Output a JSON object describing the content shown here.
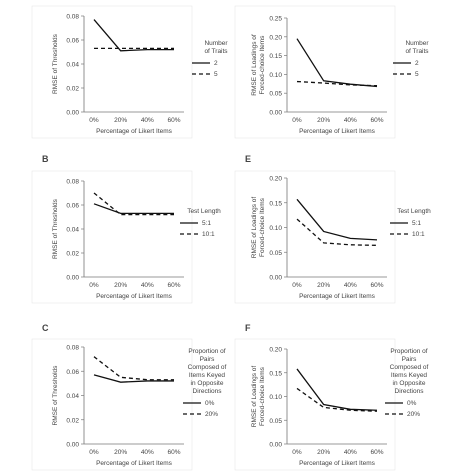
{
  "figure": {
    "xlabel": "Percentage of Likert Items",
    "categories": [
      "0%",
      "20%",
      "40%",
      "60%"
    ]
  },
  "chart_data": [
    {
      "type": "line",
      "panel_letter": "",
      "title": "",
      "xlabel": "Percentage of Likert Items",
      "ylabel": "RMSE of Thresholds",
      "categories": [
        "0%",
        "20%",
        "40%",
        "60%"
      ],
      "ylim": [
        0,
        0.08
      ],
      "yticks": [
        "0.00",
        "0.02",
        "0.04",
        "0.06",
        "0.08"
      ],
      "legend_title": [
        "Number",
        "of Traits"
      ],
      "series": [
        {
          "name": "2",
          "dash": "solid",
          "values": [
            0.077,
            0.051,
            0.052,
            0.052
          ]
        },
        {
          "name": "5",
          "dash": "dashed",
          "values": [
            0.053,
            0.053,
            0.053,
            0.053
          ]
        }
      ]
    },
    {
      "type": "line",
      "panel_letter": "",
      "title": "",
      "xlabel": "Percentage of Likert Items",
      "ylabel": "RMSE of Loadings of Forced-choice Items",
      "categories": [
        "0%",
        "20%",
        "40%",
        "60%"
      ],
      "ylim": [
        0,
        0.25
      ],
      "yticks": [
        "0.00",
        "0.05",
        "0.10",
        "0.15",
        "0.20",
        "0.25"
      ],
      "legend_title": [
        "Number",
        "of Traits"
      ],
      "series": [
        {
          "name": "2",
          "dash": "solid",
          "values": [
            0.195,
            0.083,
            0.074,
            0.068
          ]
        },
        {
          "name": "5",
          "dash": "dashed",
          "values": [
            0.081,
            0.077,
            0.072,
            0.07
          ]
        }
      ]
    },
    {
      "type": "line",
      "panel_letter": "B",
      "title": "",
      "xlabel": "Percentage of Likert Items",
      "ylabel": "RMSE of Thresholds",
      "categories": [
        "0%",
        "20%",
        "40%",
        "60%"
      ],
      "ylim": [
        0,
        0.08
      ],
      "yticks": [
        "0.00",
        "0.02",
        "0.04",
        "0.06",
        "0.08"
      ],
      "legend_title": [
        "Test Length"
      ],
      "series": [
        {
          "name": "5:1",
          "dash": "solid",
          "values": [
            0.061,
            0.053,
            0.053,
            0.053
          ]
        },
        {
          "name": "10:1",
          "dash": "dashed",
          "values": [
            0.07,
            0.052,
            0.052,
            0.052
          ]
        }
      ]
    },
    {
      "type": "line",
      "panel_letter": "E",
      "title": "",
      "xlabel": "Percentage of Likert Items",
      "ylabel": "RMSE of Loadings of Forced-choice Items",
      "categories": [
        "0%",
        "20%",
        "40%",
        "60%"
      ],
      "ylim": [
        0,
        0.2
      ],
      "yticks": [
        "0.00",
        "0.05",
        "0.10",
        "0.15",
        "0.20"
      ],
      "legend_title": [
        "Test Length"
      ],
      "series": [
        {
          "name": "5:1",
          "dash": "solid",
          "values": [
            0.157,
            0.092,
            0.078,
            0.075
          ]
        },
        {
          "name": "10:1",
          "dash": "dashed",
          "values": [
            0.117,
            0.069,
            0.065,
            0.064
          ]
        }
      ]
    },
    {
      "type": "line",
      "panel_letter": "C",
      "title": "",
      "xlabel": "Percentage of Likert Items",
      "ylabel": "RMSE of Thresholds",
      "categories": [
        "0%",
        "20%",
        "40%",
        "60%"
      ],
      "ylim": [
        0,
        0.08
      ],
      "yticks": [
        "0.00",
        "0.02",
        "0.04",
        "0.06",
        "0.08"
      ],
      "legend_title": [
        "Proportion of",
        "Pairs",
        "Composed of",
        "Items Keyed",
        "in Opposite",
        "Directions"
      ],
      "series": [
        {
          "name": "0%",
          "dash": "solid",
          "values": [
            0.057,
            0.051,
            0.052,
            0.052
          ]
        },
        {
          "name": "20%",
          "dash": "dashed",
          "values": [
            0.072,
            0.055,
            0.053,
            0.053
          ]
        }
      ]
    },
    {
      "type": "line",
      "panel_letter": "F",
      "title": "",
      "xlabel": "Percentage of Likert Items",
      "ylabel": "RMSE of Loadings of Forced-choice Items",
      "categories": [
        "0%",
        "20%",
        "40%",
        "60%"
      ],
      "ylim": [
        0,
        0.2
      ],
      "yticks": [
        "0.00",
        "0.05",
        "0.10",
        "0.15",
        "0.20"
      ],
      "legend_title": [
        "Proportion of",
        "Pairs",
        "Composed of",
        "Items Keyed",
        "in Opposite",
        "Directions"
      ],
      "series": [
        {
          "name": "0%",
          "dash": "solid",
          "values": [
            0.158,
            0.083,
            0.073,
            0.071
          ]
        },
        {
          "name": "20%",
          "dash": "dashed",
          "values": [
            0.117,
            0.077,
            0.071,
            0.069
          ]
        }
      ]
    }
  ]
}
